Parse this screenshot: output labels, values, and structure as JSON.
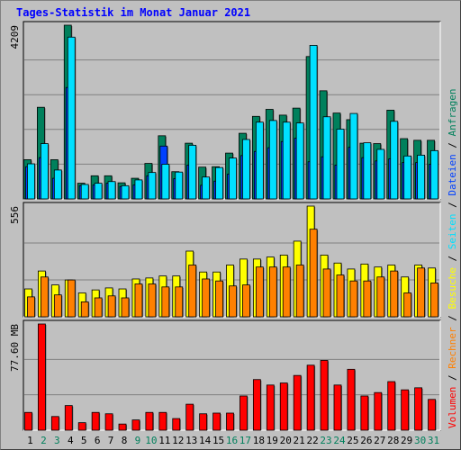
{
  "chart_data": {
    "type": "bar",
    "title": "Tages-Statistik im Monat Januar 2021",
    "categories": [
      "1",
      "2",
      "3",
      "4",
      "5",
      "6",
      "7",
      "8",
      "9",
      "10",
      "11",
      "12",
      "13",
      "14",
      "15",
      "16",
      "17",
      "18",
      "19",
      "20",
      "21",
      "22",
      "23",
      "24",
      "25",
      "26",
      "27",
      "28",
      "29",
      "30",
      "31"
    ],
    "weekend_days": [
      "2",
      "3",
      "9",
      "10",
      "16",
      "17",
      "23",
      "24",
      "30",
      "31"
    ],
    "colors": {
      "anfragen": "#00805c",
      "dateien": "#0040ff",
      "seiten": "#00e0ff",
      "besuche": "#ffff00",
      "rechner": "#ff8000",
      "volumen": "#ff0000",
      "day_normal": "#000000",
      "day_weekend": "#00805c",
      "title": "#0000ff"
    },
    "panels": [
      {
        "name": "hits",
        "max_label": "4209",
        "ylim": [
          0,
          4209
        ],
        "series": [
          {
            "name": "Anfragen",
            "color": "#00805c",
            "values": [
              950,
              2220,
              950,
              4209,
              380,
              560,
              560,
              390,
              500,
              860,
              1530,
              660,
              1350,
              770,
              780,
              1110,
              1590,
              2000,
              2170,
              2030,
              2200,
              3450,
              2620,
              2080,
              1920,
              1350,
              1340,
              2150,
              1460,
              1420,
              1420
            ]
          },
          {
            "name": "Dateien",
            "color": "#0040ff",
            "values": [
              780,
              1000,
              500,
              2700,
              320,
              340,
              380,
              300,
              340,
              560,
              1280,
              490,
              820,
              330,
              430,
              600,
              1050,
              1150,
              1240,
              1390,
              1470,
              900,
              1020,
              820,
              1250,
              1000,
              920,
              970,
              880,
              880,
              840
            ]
          },
          {
            "name": "Seiten",
            "color": "#00e0ff",
            "values": [
              850,
              1340,
              700,
              3920,
              350,
              380,
              420,
              320,
              460,
              640,
              840,
              650,
              1300,
              530,
              760,
              990,
              1440,
              1860,
              1900,
              1860,
              1840,
              3720,
              1990,
              1690,
              2070,
              1360,
              1200,
              1880,
              1040,
              1060,
              1170
            ]
          }
        ]
      },
      {
        "name": "visits",
        "max_label": "556",
        "ylim": [
          0,
          556
        ],
        "series": [
          {
            "name": "Besuche",
            "color": "#ffff00",
            "values": [
              140,
              230,
              160,
              185,
              120,
              135,
              145,
              140,
              190,
              195,
              205,
              205,
              330,
              225,
              225,
              260,
              290,
              290,
              300,
              310,
              380,
              556,
              310,
              270,
              240,
              265,
              250,
              260,
              200,
              260,
              245
            ]
          },
          {
            "name": "Rechner",
            "color": "#ff8000",
            "values": [
              100,
              200,
              110,
              185,
              75,
              95,
              105,
              95,
              165,
              165,
              150,
              150,
              260,
              190,
              180,
              155,
              160,
              250,
              250,
              250,
              260,
              440,
              240,
              210,
              180,
              180,
              200,
              230,
              120,
              245,
              170
            ]
          }
        ]
      },
      {
        "name": "volume",
        "max_label": "77.60 MB",
        "ylim": [
          0,
          77.6
        ],
        "series": [
          {
            "name": "Volumen",
            "color": "#ff0000",
            "values": [
              13,
              77.6,
              10,
              18,
              5.5,
              13,
              12,
              4.5,
              7.5,
              13,
              13,
              8.5,
              19,
              12,
              12.5,
              12.5,
              25,
              37,
              33,
              34.5,
              40,
              47.5,
              51,
              33,
              44.5,
              25,
              27.5,
              35.5,
              29.5,
              31,
              22.5
            ]
          }
        ]
      }
    ],
    "right_legend": [
      {
        "text": "Volumen",
        "color": "#ff0000"
      },
      {
        "text": " / ",
        "color": "#000000"
      },
      {
        "text": "Rechner",
        "color": "#ff8000"
      },
      {
        "text": " / ",
        "color": "#000000"
      },
      {
        "text": "Besuche",
        "color": "#ffff00"
      },
      {
        "text": " / ",
        "color": "#000000"
      },
      {
        "text": "Seiten",
        "color": "#00e0ff"
      },
      {
        "text": " / ",
        "color": "#000000"
      },
      {
        "text": "Dateien",
        "color": "#0040ff"
      },
      {
        "text": " / ",
        "color": "#000000"
      },
      {
        "text": "Anfragen",
        "color": "#00805c"
      }
    ]
  }
}
